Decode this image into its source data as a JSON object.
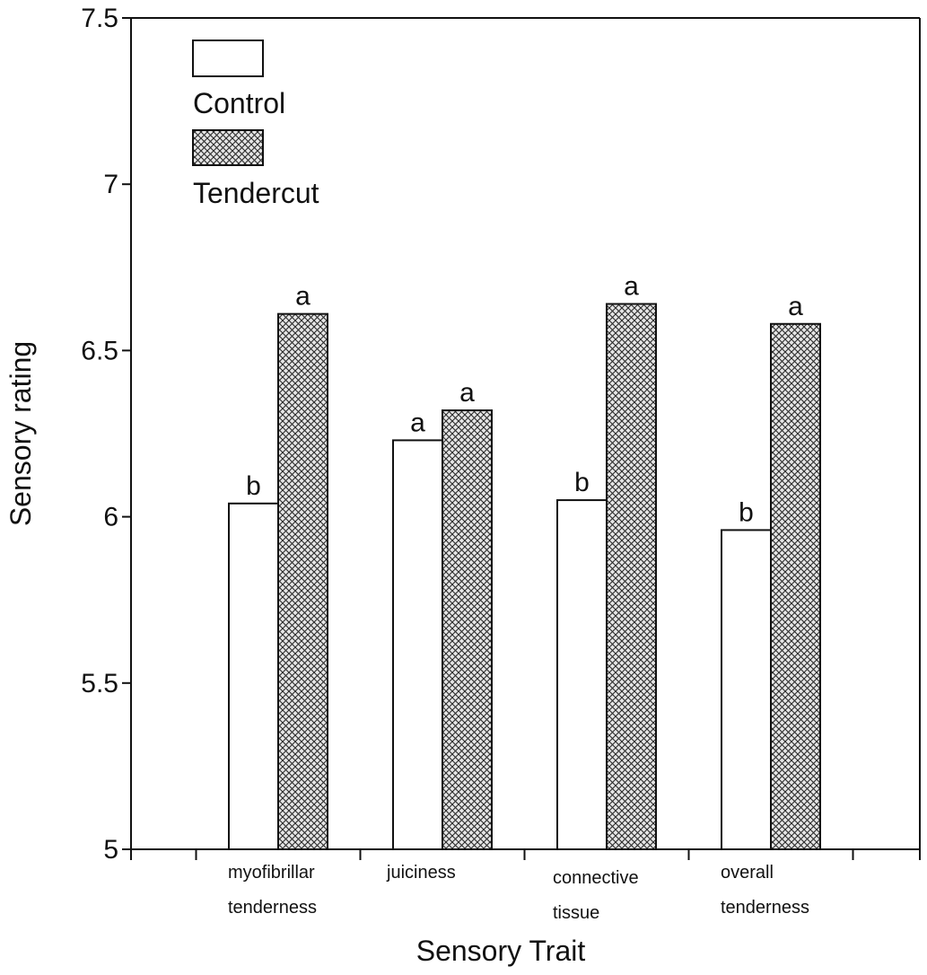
{
  "chart_data": {
    "type": "bar",
    "title": "",
    "xlabel": "Sensory Trait",
    "ylabel": "Sensory rating",
    "ylim": [
      5,
      7.5
    ],
    "yticks": [
      "5",
      "5.5",
      "6",
      "6.5",
      "7",
      "7.5"
    ],
    "categories": [
      [
        "myofibrillar",
        "tenderness"
      ],
      [
        "juiciness"
      ],
      [
        "connective",
        "tissue"
      ],
      [
        "overall",
        "tenderness"
      ]
    ],
    "series": [
      {
        "name": "Control",
        "fill": "#ffffff",
        "values": [
          6.04,
          6.23,
          6.05,
          5.96
        ],
        "labels": [
          "b",
          "a",
          "b",
          "b"
        ]
      },
      {
        "name": "Tendercut",
        "fill": "crosshatch",
        "values": [
          6.61,
          6.32,
          6.64,
          6.58
        ],
        "labels": [
          "a",
          "a",
          "a",
          "a"
        ]
      }
    ],
    "legend_position": "top-left",
    "grid": false
  }
}
